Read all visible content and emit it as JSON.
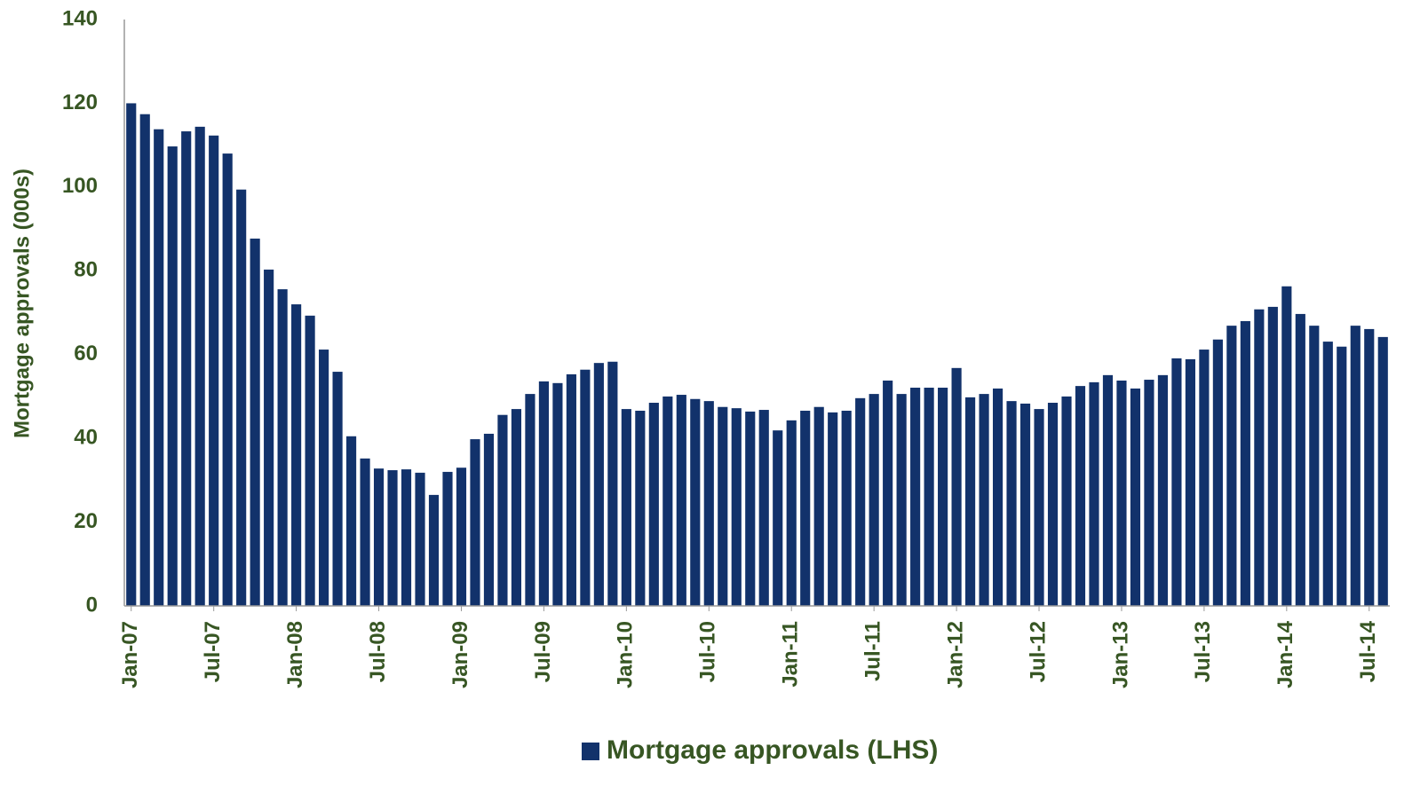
{
  "chart_data": {
    "type": "bar",
    "y_axis_label": "Mortgage approvals (000s)",
    "categories": [
      "Jan-07",
      null,
      null,
      null,
      null,
      null,
      "Jul-07",
      null,
      null,
      null,
      null,
      null,
      "Jan-08",
      null,
      null,
      null,
      null,
      null,
      "Jul-08",
      null,
      null,
      null,
      null,
      null,
      "Jan-09",
      null,
      null,
      null,
      null,
      null,
      "Jul-09",
      null,
      null,
      null,
      null,
      null,
      "Jan-10",
      null,
      null,
      null,
      null,
      null,
      "Jul-10",
      null,
      null,
      null,
      null,
      null,
      "Jan-11",
      null,
      null,
      null,
      null,
      null,
      "Jul-11",
      null,
      null,
      null,
      null,
      null,
      "Jan-12",
      null,
      null,
      null,
      null,
      null,
      "Jul-12",
      null,
      null,
      null,
      null,
      null,
      "Jan-13",
      null,
      null,
      null,
      null,
      null,
      "Jul-13",
      null,
      null,
      null,
      null,
      null,
      "Jan-14",
      null,
      null,
      null,
      null,
      null,
      "Jul-14",
      null
    ],
    "series": [
      {
        "name": "Mortgage approvals (LHS)",
        "color": "#12326b",
        "values": [
          120,
          117.4,
          113.8,
          109.7,
          113.3,
          114.4,
          112.3,
          108,
          99.4,
          87.7,
          80.3,
          75.6,
          72,
          69.3,
          61.2,
          55.9,
          40.5,
          35.2,
          32.8,
          32.4,
          32.6,
          31.8,
          26.5,
          32,
          33,
          39.8,
          41.1,
          45.6,
          47,
          50.6,
          53.6,
          53.2,
          55.3,
          56.4,
          58,
          58.3,
          47,
          46.6,
          48.5,
          50,
          50.4,
          49.4,
          48.9,
          47.5,
          47.2,
          46.4,
          46.8,
          41.9,
          44.3,
          46.6,
          47.5,
          46.2,
          46.6,
          49.6,
          50.6,
          53.8,
          50.6,
          52.1,
          52.1,
          52.1,
          56.8,
          49.8,
          50.6,
          51.9,
          48.9,
          48.3,
          47,
          48.5,
          50,
          52.5,
          53.4,
          55.1,
          53.8,
          51.9,
          54,
          55.1,
          59.1,
          58.9,
          61.2,
          63.6,
          66.9,
          68,
          70.8,
          71.4,
          76.3,
          69.7,
          66.9,
          63.1,
          61.9,
          66.9,
          66.1,
          64.2
        ]
      }
    ],
    "ylim": [
      0,
      140
    ],
    "yticks": [
      0,
      20,
      40,
      60,
      80,
      100,
      120,
      140
    ],
    "grid": false,
    "legend": "bottom"
  }
}
